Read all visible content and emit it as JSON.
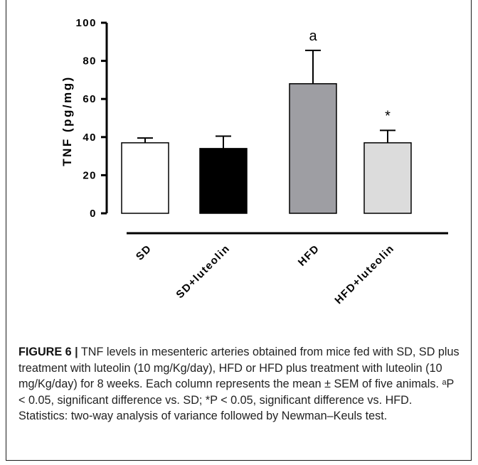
{
  "chart_data": {
    "type": "bar",
    "categories": [
      "SD",
      "SD+luteolin",
      "HFD",
      "HFD+luteolin"
    ],
    "values": [
      37,
      34,
      68,
      37
    ],
    "errors": [
      2.5,
      6.5,
      17.5,
      6.5
    ],
    "colors": [
      "#ffffff",
      "#000000",
      "#9e9ea3",
      "#dcdcdc"
    ],
    "annotations": [
      "",
      "",
      "a",
      "*"
    ],
    "title": "",
    "xlabel": "",
    "ylabel": "TNF (pg/mg)",
    "ylim": [
      0,
      100
    ],
    "yticks": [
      0,
      20,
      40,
      60,
      80,
      100
    ],
    "grid": false,
    "legend": "none"
  },
  "caption": {
    "label": "FIGURE 6",
    "separator": "|",
    "text": " TNF levels in mesenteric arteries obtained from mice fed with SD, SD plus treatment with luteolin (10 mg/Kg/day), HFD or HFD plus treatment with luteolin (10 mg/Kg/day) for 8 weeks. Each column represents the mean ± SEM of five animals. ᵃP < 0.05, significant difference vs. SD; *P < 0.05, significant difference vs. HFD. Statistics: two-way analysis of variance followed by Newman–Keuls test."
  }
}
